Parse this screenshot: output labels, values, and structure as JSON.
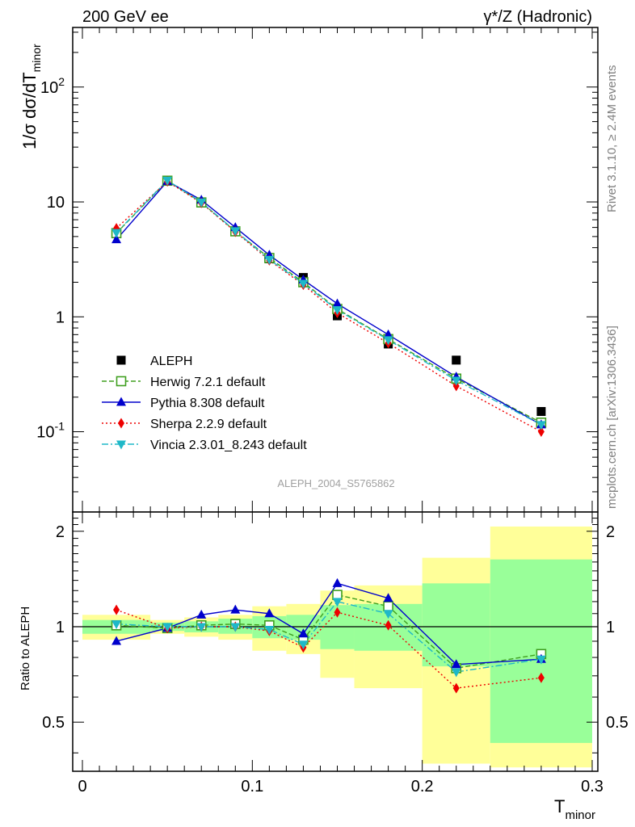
{
  "header": {
    "left": "200 GeV ee",
    "right": "γ*/Z (Hadronic)"
  },
  "side_labels": {
    "rivet": "Rivet 3.1.10, ≥ 2.4M events",
    "mcplots": "mcplots.cern.ch [arXiv:1306.3436]"
  },
  "analysis_tag": "ALEPH_2004_S5765862",
  "colors": {
    "data": "#000000",
    "herwig": "#3f9f1f",
    "pythia": "#0000cc",
    "sherpa": "#ee0000",
    "vincia": "#1fb8c8",
    "band_inner": "#99ff99",
    "band_outer": "#ffff99"
  },
  "chart_data": [
    {
      "type": "line",
      "panel": "main",
      "ylabel": "1/σ dσ/dT_minor",
      "yscale": "log",
      "xlim": [
        0,
        0.3
      ],
      "ylim": [
        0.02,
        330
      ],
      "ytick_labels": [
        "10^-1",
        "1",
        "10",
        "10^2"
      ],
      "x": [
        0.02,
        0.05,
        0.07,
        0.09,
        0.11,
        0.13,
        0.15,
        0.18,
        0.22,
        0.27
      ],
      "data": {
        "name": "ALEPH",
        "values": [
          5.3,
          15.3,
          9.8,
          5.5,
          3.2,
          2.2,
          1.02,
          0.58,
          0.42,
          0.15
        ]
      },
      "series": [
        {
          "name": "Herwig 7.2.1 default",
          "style": "dashed",
          "marker": "open-square",
          "values": [
            5.35,
            15.3,
            9.9,
            5.55,
            3.25,
            2.0,
            1.17,
            0.64,
            0.29,
            0.12
          ]
        },
        {
          "name": "Pythia 8.308 default",
          "style": "solid",
          "marker": "triangle-up",
          "values": [
            4.7,
            15.1,
            10.4,
            6.0,
            3.45,
            2.1,
            1.3,
            0.7,
            0.3,
            0.115
          ]
        },
        {
          "name": "Sherpa 2.2.9 default",
          "style": "dotted",
          "marker": "diamond",
          "values": [
            5.9,
            15.1,
            9.8,
            5.5,
            3.1,
            1.9,
            1.08,
            0.59,
            0.25,
            0.1
          ]
        },
        {
          "name": "Vincia 2.3.01_8.243 default",
          "style": "dashdot",
          "marker": "triangle-down",
          "values": [
            5.4,
            15.4,
            9.95,
            5.6,
            3.15,
            1.95,
            1.15,
            0.63,
            0.28,
            0.115
          ]
        }
      ],
      "legend_position": "lower-left"
    },
    {
      "type": "line",
      "panel": "ratio",
      "ylabel": "Ratio to ALEPH",
      "xlabel": "T_minor",
      "yscale": "log",
      "xlim": [
        0,
        0.3
      ],
      "ylim": [
        0.35,
        2.3
      ],
      "ytick_labels": [
        "0.5",
        "1",
        "2"
      ],
      "xtick_labels": [
        "0",
        "0.1",
        "0.2",
        "0.3"
      ],
      "reference_line": 1,
      "bands": [
        {
          "x0": 0.0,
          "x1": 0.04,
          "inner": [
            0.95,
            1.05
          ],
          "outer": [
            0.91,
            1.09
          ]
        },
        {
          "x0": 0.04,
          "x1": 0.06,
          "inner": [
            0.97,
            1.03
          ],
          "outer": [
            0.95,
            1.05
          ]
        },
        {
          "x0": 0.06,
          "x1": 0.08,
          "inner": [
            0.96,
            1.04
          ],
          "outer": [
            0.93,
            1.07
          ]
        },
        {
          "x0": 0.08,
          "x1": 0.1,
          "inner": [
            0.95,
            1.06
          ],
          "outer": [
            0.91,
            1.09
          ]
        },
        {
          "x0": 0.1,
          "x1": 0.12,
          "inner": [
            0.92,
            1.08
          ],
          "outer": [
            0.84,
            1.16
          ]
        },
        {
          "x0": 0.12,
          "x1": 0.14,
          "inner": [
            0.91,
            1.09
          ],
          "outer": [
            0.82,
            1.18
          ]
        },
        {
          "x0": 0.14,
          "x1": 0.16,
          "inner": [
            0.85,
            1.17
          ],
          "outer": [
            0.69,
            1.3
          ]
        },
        {
          "x0": 0.16,
          "x1": 0.2,
          "inner": [
            0.84,
            1.18
          ],
          "outer": [
            0.64,
            1.35
          ]
        },
        {
          "x0": 0.2,
          "x1": 0.24,
          "inner": [
            0.75,
            1.37
          ],
          "outer": [
            0.37,
            1.65
          ]
        },
        {
          "x0": 0.24,
          "x1": 0.3,
          "inner": [
            0.43,
            1.63
          ],
          "outer": [
            0.36,
            2.07
          ]
        }
      ],
      "x": [
        0.02,
        0.05,
        0.07,
        0.09,
        0.11,
        0.13,
        0.15,
        0.18,
        0.22,
        0.27
      ],
      "series": [
        {
          "name": "Herwig 7.2.1 default",
          "values": [
            1.01,
            0.99,
            1.01,
            1.02,
            1.01,
            0.91,
            1.26,
            1.16,
            0.74,
            0.82
          ]
        },
        {
          "name": "Pythia 8.308 default",
          "values": [
            0.9,
            0.99,
            1.09,
            1.13,
            1.1,
            0.95,
            1.37,
            1.23,
            0.76,
            0.79
          ]
        },
        {
          "name": "Sherpa 2.2.9 default",
          "values": [
            1.13,
            0.99,
            1.0,
            1.0,
            0.97,
            0.86,
            1.11,
            1.01,
            0.64,
            0.69
          ]
        },
        {
          "name": "Vincia 2.3.01_8.243 default",
          "values": [
            1.02,
            1.0,
            1.0,
            1.0,
            0.98,
            0.88,
            1.2,
            1.1,
            0.72,
            0.79
          ]
        }
      ]
    }
  ]
}
